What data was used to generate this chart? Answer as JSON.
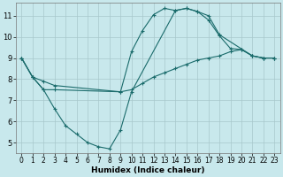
{
  "xlabel": "Humidex (Indice chaleur)",
  "bg_color": "#c8e8ec",
  "grid_color": "#a8c8cc",
  "line_color": "#1a6b6b",
  "line1_x": [
    0,
    1,
    2,
    3,
    4,
    5,
    6,
    7,
    8,
    9,
    10,
    14,
    15,
    16,
    17,
    18,
    21,
    22,
    23
  ],
  "line1_y": [
    9.0,
    8.1,
    7.5,
    6.6,
    5.8,
    5.4,
    5.0,
    4.8,
    4.7,
    5.6,
    7.4,
    11.25,
    11.35,
    11.2,
    11.0,
    10.1,
    9.1,
    9.0,
    9.0
  ],
  "line2_x": [
    0,
    1,
    2,
    3,
    9,
    10,
    11,
    12,
    13,
    14,
    15,
    16,
    17,
    18,
    19,
    20,
    21,
    22,
    23
  ],
  "line2_y": [
    9.0,
    8.1,
    7.5,
    7.5,
    7.4,
    9.3,
    10.3,
    11.05,
    11.35,
    11.25,
    11.35,
    11.2,
    10.8,
    10.05,
    9.45,
    9.4,
    9.1,
    9.0,
    9.0
  ],
  "line3_x": [
    0,
    1,
    2,
    3,
    9,
    10,
    11,
    12,
    13,
    14,
    15,
    16,
    17,
    18,
    19,
    20,
    21,
    22,
    23
  ],
  "line3_y": [
    9.0,
    8.1,
    7.9,
    7.7,
    7.4,
    7.5,
    7.8,
    8.1,
    8.3,
    8.5,
    8.7,
    8.9,
    9.0,
    9.1,
    9.3,
    9.4,
    9.1,
    9.0,
    9.0
  ],
  "xlim": [
    -0.5,
    23.5
  ],
  "ylim": [
    4.5,
    11.6
  ],
  "yticks": [
    5,
    6,
    7,
    8,
    9,
    10,
    11
  ],
  "xticks": [
    0,
    1,
    2,
    3,
    4,
    5,
    6,
    7,
    8,
    9,
    10,
    11,
    12,
    13,
    14,
    15,
    16,
    17,
    18,
    19,
    20,
    21,
    22,
    23
  ],
  "tick_fontsize": 5.5,
  "xlabel_fontsize": 6.5
}
